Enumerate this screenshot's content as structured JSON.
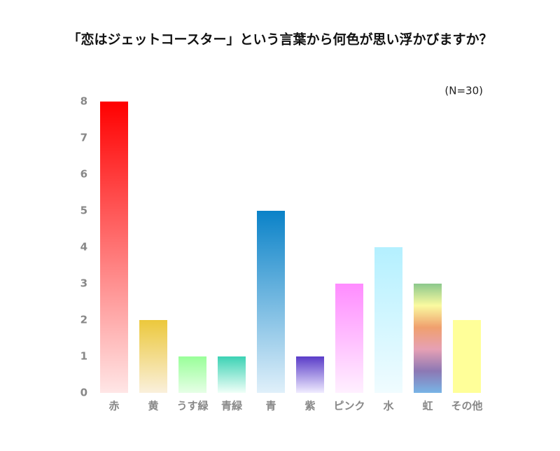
{
  "chart_data": {
    "type": "bar",
    "title": "「恋はジェットコースター」という言葉から何色が思い浮かびますか？",
    "annotation": "(N=30)",
    "categories": [
      "赤",
      "黄",
      "うす緑",
      "青緑",
      "青",
      "紫",
      "ピンク",
      "水",
      "虹",
      "その他"
    ],
    "values": [
      8,
      2,
      1,
      1,
      5,
      1,
      3,
      4,
      3,
      2
    ],
    "colors": [
      [
        "#ff0000",
        "#ffe6e6"
      ],
      [
        "#ecc83c",
        "#faf0dc"
      ],
      [
        "#99ff99",
        "#e6ffe6"
      ],
      [
        "#3cd2b4",
        "#f0fff8"
      ],
      [
        "#0a82c8",
        "#e0f0fa"
      ],
      [
        "#5a3cc8",
        "#f0ecff"
      ],
      [
        "#ff8cff",
        "#fff0ff"
      ],
      [
        "#b4f0ff",
        "#f0fcff"
      ],
      [
        "#8cc88c",
        "#fafaa0",
        "#f0a06e",
        "#e6a0b4",
        "#8c78b4",
        "#78b4e6"
      ],
      [
        "#ffff99",
        "#ffff99"
      ]
    ],
    "ylim": [
      0,
      8
    ],
    "yticks": [
      0,
      1,
      2,
      3,
      4,
      5,
      6,
      7,
      8
    ],
    "grid": false
  }
}
